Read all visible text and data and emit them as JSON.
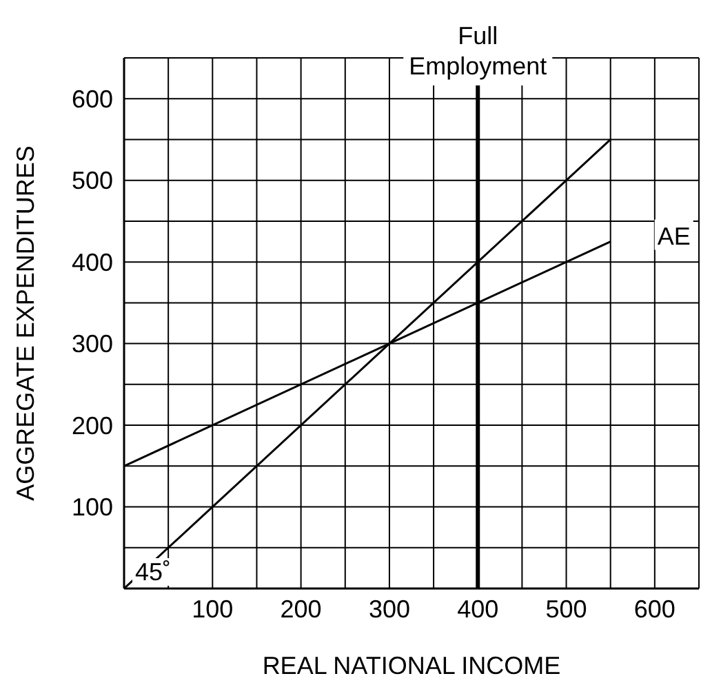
{
  "chart_data": {
    "type": "line",
    "xlabel": "REAL NATIONAL INCOME",
    "ylabel": "AGGREGATE EXPENDITURES",
    "series": [
      {
        "name": "AE",
        "color": "#000000",
        "values": [
          150,
          425
        ]
      },
      {
        "color": "#000000",
        "values": [
          0,
          550
        ]
      }
    ],
    "x": [
      0,
      550
    ],
    "xlim": [
      0,
      650
    ],
    "ylim": [
      0,
      650
    ],
    "xticks": [
      {
        "value": 50,
        "label": null
      },
      100,
      {
        "value": 150,
        "label": null
      },
      200,
      {
        "value": 250,
        "label": null
      },
      300,
      {
        "value": 350,
        "label": null
      },
      400,
      {
        "value": 450,
        "label": null
      },
      500,
      {
        "value": 550,
        "label": null
      },
      600,
      {
        "value": 650,
        "label": null
      }
    ],
    "yticks": [
      {
        "value": 50,
        "label": null
      },
      100,
      {
        "value": 150,
        "label": null
      },
      200,
      {
        "value": 250,
        "label": null
      },
      300,
      {
        "value": 350,
        "label": null
      },
      400,
      {
        "value": 450,
        "label": null
      },
      500,
      {
        "value": 550,
        "label": null
      },
      600,
      {
        "value": 650,
        "label": null
      }
    ],
    "ref_lines": [
      {
        "axis": "x",
        "value": 400,
        "label": "Full Employment",
        "color": "#000000"
      }
    ],
    "annotations": [
      "45˚"
    ],
    "grid": true,
    "legend": false,
    "marker": "none",
    "line_style": "solid"
  }
}
